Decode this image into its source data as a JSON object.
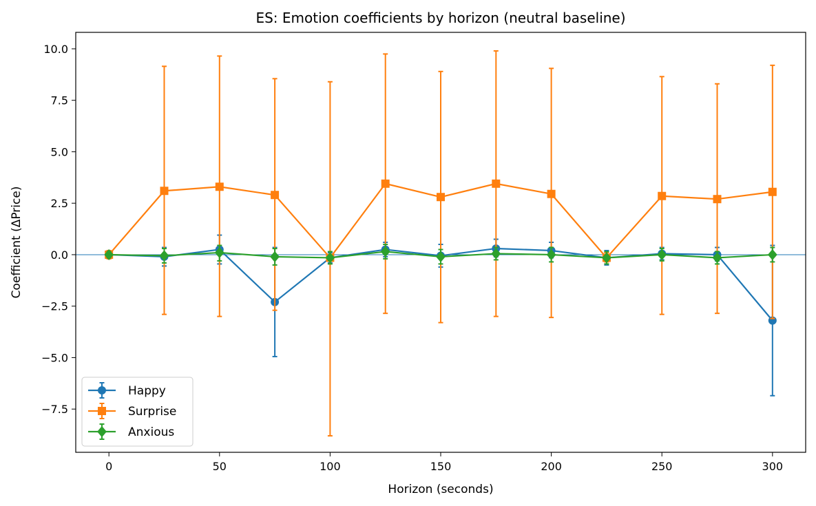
{
  "chart_data": {
    "type": "line",
    "title": "ES: Emotion coefficients by horizon (neutral baseline)",
    "xlabel": "Horizon (seconds)",
    "ylabel": "Coefficient (ΔPrice)",
    "xlim": [
      -15,
      315
    ],
    "ylim": [
      -9.6,
      10.8
    ],
    "x_ticks": [
      0,
      50,
      100,
      150,
      200,
      250,
      300
    ],
    "x_tick_labels": [
      "0",
      "50",
      "100",
      "150",
      "200",
      "250",
      "300"
    ],
    "y_ticks": [
      -7.5,
      -5.0,
      -2.5,
      0.0,
      2.5,
      5.0,
      7.5,
      10.0
    ],
    "y_tick_labels": [
      "−7.5",
      "−5.0",
      "−2.5",
      "0.0",
      "2.5",
      "5.0",
      "7.5",
      "10.0"
    ],
    "zero_line": true,
    "grid": false,
    "legend_position": "lower-left",
    "x": [
      0,
      25,
      50,
      75,
      100,
      125,
      150,
      175,
      200,
      225,
      250,
      275,
      300
    ],
    "series": [
      {
        "name": "Happy",
        "color": "#1f77b4",
        "marker": "circle",
        "values": [
          0.0,
          -0.1,
          0.25,
          -2.3,
          -0.15,
          0.25,
          -0.05,
          0.3,
          0.2,
          -0.15,
          0.05,
          0.0,
          -3.2
        ],
        "err_low": [
          -0.15,
          -0.55,
          -0.45,
          -4.95,
          -0.4,
          -0.1,
          -0.6,
          -0.1,
          -0.15,
          -0.5,
          -0.25,
          -0.3,
          -6.85
        ],
        "err_high": [
          0.15,
          0.35,
          0.95,
          0.35,
          0.1,
          0.6,
          0.5,
          0.75,
          0.6,
          0.2,
          0.35,
          0.35,
          0.45
        ]
      },
      {
        "name": "Surprise",
        "color": "#ff7f0e",
        "marker": "square",
        "values": [
          0.0,
          3.1,
          3.3,
          2.9,
          -0.15,
          3.45,
          2.8,
          3.45,
          2.95,
          -0.15,
          2.85,
          2.7,
          3.05
        ],
        "err_low": [
          -0.2,
          -2.9,
          -3.0,
          -2.7,
          -8.8,
          -2.85,
          -3.3,
          -3.0,
          -3.05,
          -0.35,
          -2.9,
          -2.85,
          -3.1
        ],
        "err_high": [
          0.2,
          9.15,
          9.65,
          8.55,
          8.4,
          9.75,
          8.9,
          9.9,
          9.05,
          0.1,
          8.65,
          8.3,
          9.2
        ]
      },
      {
        "name": "Anxious",
        "color": "#2ca02c",
        "marker": "diamond",
        "values": [
          0.0,
          -0.05,
          0.1,
          -0.1,
          -0.15,
          0.15,
          -0.1,
          0.05,
          0.0,
          -0.15,
          0.0,
          -0.15,
          0.0
        ],
        "err_low": [
          -0.15,
          -0.4,
          -0.3,
          -0.5,
          -0.45,
          -0.2,
          -0.45,
          -0.25,
          -0.35,
          -0.45,
          -0.3,
          -0.45,
          -0.35
        ],
        "err_high": [
          0.15,
          0.3,
          0.45,
          0.3,
          0.15,
          0.5,
          0.25,
          0.35,
          0.35,
          0.15,
          0.3,
          0.15,
          0.35
        ]
      }
    ]
  }
}
